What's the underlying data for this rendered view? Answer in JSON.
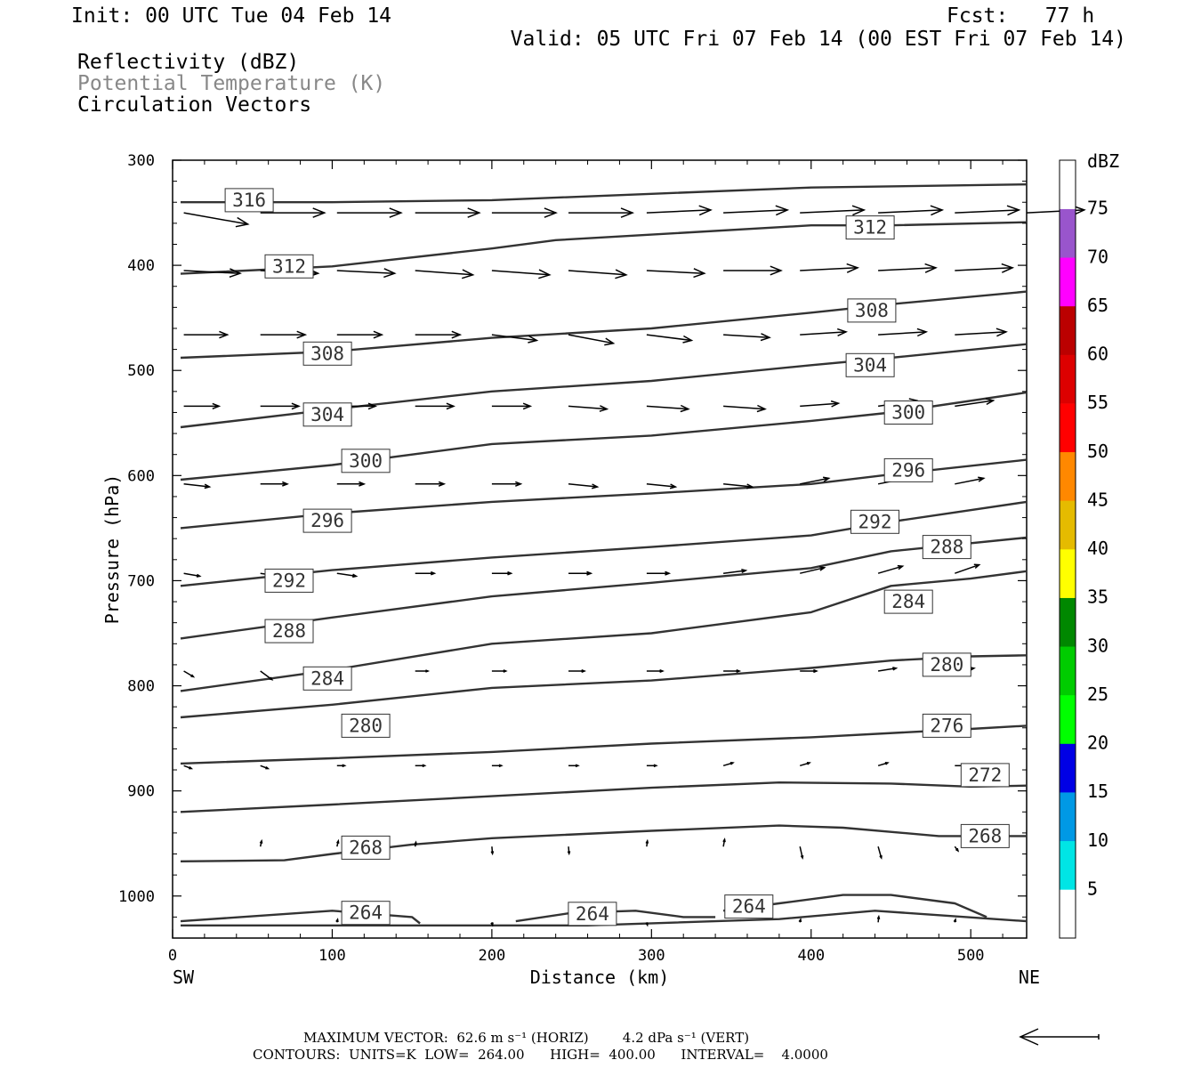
{
  "header": {
    "init": "Init: 00 UTC Tue 04 Feb 14",
    "fcst": "Fcst:   77 h",
    "valid": "Valid: 05 UTC Fri 07 Feb 14 (00 EST Fri 07 Feb 14)",
    "field1": "Reflectivity (dBZ)",
    "field2": "Potential Temperature (K)",
    "field3": "Circulation Vectors"
  },
  "footer": {
    "max_vector": "MAXIMUM VECTOR:  62.6 m s⁻¹ (HORIZ)        4.2 dPa s⁻¹ (VERT)",
    "contours": "CONTOURS:  UNITS=K  LOW=  264.00      HIGH=  400.00      INTERVAL=    4.0000"
  },
  "colors": {
    "contour": "#333333",
    "vector": "#000000",
    "dbz_scale": [
      "#ffffff",
      "#00e5e5",
      "#0099e5",
      "#0000e5",
      "#00ff00",
      "#00cc00",
      "#008800",
      "#ffff00",
      "#e5bb00",
      "#ff8800",
      "#ff0000",
      "#dd0000",
      "#bb0000",
      "#ff00ff",
      "#9955cc",
      "#ffffff"
    ]
  },
  "chart_data": {
    "type": "cross-section",
    "xlabel": "Distance (km)",
    "ylabel": "Pressure (hPa)",
    "xlim": [
      0,
      535
    ],
    "ylim": [
      300,
      1040
    ],
    "y_inverted": true,
    "x_ticks": [
      0,
      100,
      200,
      300,
      400,
      500
    ],
    "y_ticks": [
      300,
      400,
      500,
      600,
      700,
      800,
      900,
      1000
    ],
    "x_end_labels": {
      "left": "SW",
      "right": "NE"
    },
    "colorbar": {
      "title": "dBZ",
      "levels": [
        5,
        10,
        15,
        20,
        25,
        30,
        35,
        40,
        45,
        50,
        55,
        60,
        65,
        70,
        75
      ]
    },
    "theta_contours": [
      {
        "value": 264,
        "points": [
          [
            5,
            1024
          ],
          [
            100,
            1014
          ],
          [
            150,
            1020
          ],
          [
            155,
            1026
          ]
        ]
      },
      {
        "value": 264,
        "points": [
          [
            215,
            1024
          ],
          [
            250,
            1016
          ],
          [
            290,
            1014
          ],
          [
            320,
            1020
          ],
          [
            340,
            1020
          ]
        ]
      },
      {
        "value": 264,
        "points": [
          [
            345,
            1014
          ],
          [
            380,
            1007
          ],
          [
            420,
            999
          ],
          [
            450,
            999
          ],
          [
            490,
            1007
          ],
          [
            510,
            1020
          ]
        ]
      },
      {
        "value": 264,
        "points": [
          [
            5,
            1028
          ],
          [
            180,
            1028
          ],
          [
            260,
            1028
          ],
          [
            380,
            1022
          ],
          [
            440,
            1014
          ],
          [
            535,
            1024
          ]
        ]
      },
      {
        "value": 268,
        "points": [
          [
            5,
            967
          ],
          [
            70,
            966
          ],
          [
            100,
            960
          ],
          [
            150,
            951
          ],
          [
            200,
            945
          ],
          [
            300,
            938
          ],
          [
            380,
            933
          ],
          [
            420,
            935
          ],
          [
            480,
            943
          ],
          [
            535,
            943
          ]
        ]
      },
      {
        "value": 272,
        "points": [
          [
            5,
            920
          ],
          [
            100,
            913
          ],
          [
            200,
            905
          ],
          [
            300,
            897
          ],
          [
            380,
            892
          ],
          [
            450,
            893
          ],
          [
            500,
            896
          ],
          [
            535,
            895
          ]
        ]
      },
      {
        "value": 276,
        "points": [
          [
            5,
            874
          ],
          [
            100,
            869
          ],
          [
            200,
            863
          ],
          [
            300,
            855
          ],
          [
            400,
            849
          ],
          [
            500,
            841
          ],
          [
            535,
            838
          ]
        ]
      },
      {
        "value": 280,
        "points": [
          [
            5,
            830
          ],
          [
            100,
            818
          ],
          [
            200,
            802
          ],
          [
            300,
            795
          ],
          [
            400,
            783
          ],
          [
            450,
            776
          ],
          [
            500,
            772
          ],
          [
            535,
            771
          ]
        ]
      },
      {
        "value": 284,
        "points": [
          [
            5,
            805
          ],
          [
            100,
            785
          ],
          [
            200,
            760
          ],
          [
            300,
            750
          ],
          [
            400,
            730
          ],
          [
            450,
            705
          ],
          [
            500,
            698
          ],
          [
            535,
            691
          ]
        ]
      },
      {
        "value": 288,
        "points": [
          [
            5,
            755
          ],
          [
            100,
            735
          ],
          [
            200,
            715
          ],
          [
            300,
            702
          ],
          [
            400,
            688
          ],
          [
            450,
            672
          ],
          [
            535,
            659
          ]
        ]
      },
      {
        "value": 292,
        "points": [
          [
            5,
            705
          ],
          [
            100,
            690
          ],
          [
            200,
            678
          ],
          [
            300,
            668
          ],
          [
            400,
            657
          ],
          [
            450,
            644
          ],
          [
            535,
            625
          ]
        ]
      },
      {
        "value": 296,
        "points": [
          [
            5,
            650
          ],
          [
            100,
            636
          ],
          [
            200,
            625
          ],
          [
            300,
            617
          ],
          [
            400,
            608
          ],
          [
            450,
            599
          ],
          [
            535,
            585
          ]
        ]
      },
      {
        "value": 300,
        "points": [
          [
            5,
            604
          ],
          [
            100,
            590
          ],
          [
            200,
            570
          ],
          [
            300,
            562
          ],
          [
            400,
            548
          ],
          [
            450,
            540
          ],
          [
            535,
            521
          ]
        ]
      },
      {
        "value": 304,
        "points": [
          [
            5,
            554
          ],
          [
            100,
            537
          ],
          [
            200,
            520
          ],
          [
            300,
            510
          ],
          [
            400,
            495
          ],
          [
            450,
            488
          ],
          [
            535,
            475
          ]
        ]
      },
      {
        "value": 308,
        "points": [
          [
            5,
            488
          ],
          [
            100,
            482
          ],
          [
            200,
            469
          ],
          [
            300,
            460
          ],
          [
            400,
            445
          ],
          [
            450,
            437
          ],
          [
            535,
            425
          ]
        ]
      },
      {
        "value": 312,
        "points": [
          [
            5,
            408
          ],
          [
            100,
            401
          ],
          [
            200,
            384
          ],
          [
            240,
            376
          ],
          [
            400,
            362
          ],
          [
            450,
            362
          ],
          [
            535,
            359
          ]
        ]
      },
      {
        "value": 316,
        "points": [
          [
            5,
            340
          ],
          [
            100,
            340
          ],
          [
            200,
            338
          ],
          [
            300,
            332
          ],
          [
            400,
            326
          ],
          [
            535,
            323
          ]
        ]
      }
    ],
    "contour_labels": [
      {
        "value": 316,
        "x": 48,
        "p": 338
      },
      {
        "value": 312,
        "x": 437,
        "p": 364
      },
      {
        "value": 312,
        "x": 73,
        "p": 401
      },
      {
        "value": 308,
        "x": 438,
        "p": 443
      },
      {
        "value": 308,
        "x": 97,
        "p": 484
      },
      {
        "value": 304,
        "x": 437,
        "p": 495
      },
      {
        "value": 304,
        "x": 97,
        "p": 542
      },
      {
        "value": 300,
        "x": 461,
        "p": 540
      },
      {
        "value": 300,
        "x": 121,
        "p": 586
      },
      {
        "value": 296,
        "x": 461,
        "p": 595
      },
      {
        "value": 296,
        "x": 97,
        "p": 643
      },
      {
        "value": 292,
        "x": 440,
        "p": 644
      },
      {
        "value": 292,
        "x": 73,
        "p": 700
      },
      {
        "value": 288,
        "x": 485,
        "p": 668
      },
      {
        "value": 288,
        "x": 73,
        "p": 748
      },
      {
        "value": 284,
        "x": 461,
        "p": 720
      },
      {
        "value": 284,
        "x": 97,
        "p": 793
      },
      {
        "value": 280,
        "x": 485,
        "p": 780
      },
      {
        "value": 280,
        "x": 121,
        "p": 838
      },
      {
        "value": 276,
        "x": 485,
        "p": 838
      },
      {
        "value": 272,
        "x": 509,
        "p": 885
      },
      {
        "value": 268,
        "x": 509,
        "p": 943
      },
      {
        "value": 268,
        "x": 121,
        "p": 954
      },
      {
        "value": 264,
        "x": 121,
        "p": 1016
      },
      {
        "value": 264,
        "x": 263,
        "p": 1017
      },
      {
        "value": 264,
        "x": 361,
        "p": 1010
      }
    ],
    "vector_rows": [
      {
        "p": 350,
        "x": [
          7,
          55,
          103,
          152,
          200,
          248,
          297,
          345,
          393,
          442,
          490,
          535
        ],
        "u": [
          1,
          1,
          1,
          1,
          1,
          1,
          1,
          1,
          1,
          1,
          1,
          0.9
        ],
        "w": [
          -0.08,
          0,
          0,
          0,
          0,
          0,
          0.02,
          0.02,
          0.02,
          0.02,
          0.02,
          0.02
        ]
      },
      {
        "p": 405,
        "x": [
          7,
          55,
          103,
          152,
          200,
          248,
          297,
          345,
          393,
          442,
          490
        ],
        "u": [
          0.88,
          0.9,
          0.9,
          0.9,
          0.9,
          0.9,
          0.9,
          0.9,
          0.9,
          0.9,
          0.9
        ],
        "w": [
          -0.02,
          -0.02,
          -0.02,
          -0.03,
          -0.03,
          -0.03,
          -0.02,
          0,
          0.02,
          0.02,
          0.02
        ]
      },
      {
        "p": 466,
        "x": [
          7,
          55,
          103,
          152,
          200,
          248,
          297,
          345,
          393,
          442,
          490
        ],
        "u": [
          0.68,
          0.7,
          0.7,
          0.7,
          0.7,
          0.7,
          0.7,
          0.72,
          0.72,
          0.75,
          0.8
        ],
        "w": [
          0,
          0,
          0,
          0,
          -0.04,
          -0.06,
          -0.04,
          -0.02,
          0.02,
          0.02,
          0.02
        ]
      },
      {
        "p": 534,
        "x": [
          7,
          55,
          103,
          152,
          200,
          248,
          297,
          345,
          393,
          442,
          490
        ],
        "u": [
          0.55,
          0.6,
          0.6,
          0.6,
          0.6,
          0.6,
          0.65,
          0.65,
          0.6,
          0.6,
          0.6
        ],
        "w": [
          0,
          0,
          0,
          0,
          0,
          -0.02,
          -0.02,
          -0.02,
          0.02,
          0.04,
          0.04
        ]
      },
      {
        "p": 608,
        "x": [
          7,
          55,
          103,
          152,
          200,
          248,
          297,
          345,
          393,
          442,
          490
        ],
        "u": [
          0.4,
          0.42,
          0.42,
          0.45,
          0.45,
          0.45,
          0.45,
          0.45,
          0.45,
          0.45,
          0.45
        ],
        "w": [
          -0.02,
          0,
          0,
          0,
          0,
          -0.02,
          -0.02,
          -0.02,
          0.04,
          0.04,
          0.04
        ]
      },
      {
        "p": 693,
        "x": [
          7,
          55,
          103,
          152,
          200,
          248,
          297,
          345,
          393,
          442,
          490
        ],
        "u": [
          0.25,
          0.3,
          0.3,
          0.3,
          0.3,
          0.35,
          0.35,
          0.35,
          0.38,
          0.38,
          0.38
        ],
        "w": [
          -0.02,
          -0.02,
          -0.02,
          0,
          0,
          0,
          0,
          0.02,
          0.04,
          0.05,
          0.06
        ]
      },
      {
        "p": 786,
        "x": [
          7,
          55,
          103,
          152,
          200,
          248,
          297,
          345,
          393,
          442,
          490
        ],
        "u": [
          0.15,
          0.18,
          0.2,
          0.2,
          0.22,
          0.25,
          0.25,
          0.25,
          0.26,
          0.28,
          0.3
        ],
        "w": [
          -0.04,
          -0.06,
          0,
          0,
          0,
          0,
          0,
          0,
          0,
          0.02,
          0.02
        ]
      },
      {
        "p": 876,
        "x": [
          7,
          55,
          103,
          152,
          200,
          248,
          297,
          345,
          393,
          442,
          490
        ],
        "u": [
          0.12,
          0.12,
          0.12,
          0.15,
          0.15,
          0.15,
          0.15,
          0.15,
          0.15,
          0.15,
          0.15
        ],
        "w": [
          -0.02,
          -0.02,
          0,
          0,
          0,
          0,
          0,
          0.02,
          0.02,
          0.02,
          0
        ]
      },
      {
        "p": 953,
        "x": [
          55,
          103,
          152,
          200,
          248,
          297,
          345,
          393,
          442,
          490
        ],
        "u": [
          0.02,
          0.02,
          0.01,
          0.01,
          0.01,
          0.01,
          0.02,
          0.04,
          0.05,
          0.05
        ],
        "w": [
          0.04,
          0.04,
          0.03,
          -0.05,
          -0.05,
          0.04,
          0.05,
          -0.08,
          -0.08,
          -0.03
        ]
      },
      {
        "p": 1025,
        "x": [
          103,
          200,
          297,
          393,
          442,
          490
        ],
        "u": [
          0.01,
          0.01,
          0.01,
          0.01,
          0.01,
          0.01
        ],
        "w": [
          0.02,
          -0.02,
          -0.02,
          0.02,
          0.04,
          0.02
        ]
      }
    ]
  }
}
